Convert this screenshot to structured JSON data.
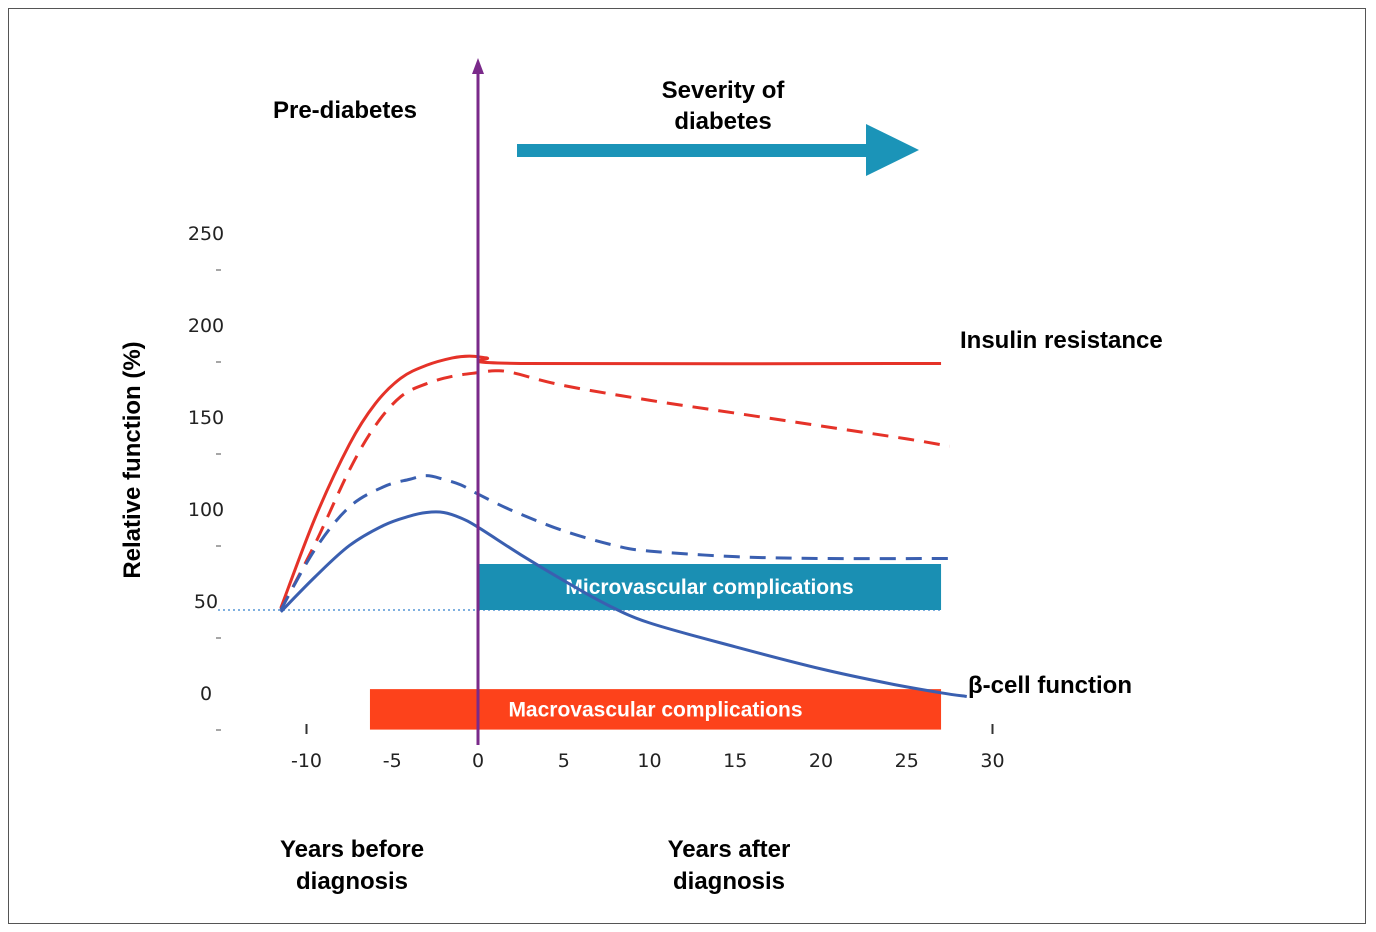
{
  "chart_data": {
    "type": "line",
    "ylabel": "Relative function (%)",
    "x_ticks": [
      -10,
      -5,
      0,
      5,
      10,
      15,
      20,
      25,
      30
    ],
    "y_ticks": [
      0,
      50,
      100,
      150,
      200,
      250
    ],
    "xlim": [
      -10,
      30
    ],
    "ylim": [
      0,
      250
    ],
    "baseline": {
      "y": 50,
      "style": "dotted",
      "color": "#7fb0e0"
    },
    "diagnosis_line": {
      "x": 0,
      "color": "#7a2a8a"
    },
    "header_left": "Pre-diabetes",
    "header_right": "Severity of diabetes",
    "header_right_lines": [
      "Severity of",
      "diabetes"
    ],
    "x_caption_before": [
      "Years before",
      "diagnosis"
    ],
    "x_caption_after": [
      "Years after",
      "diagnosis"
    ],
    "arrow_color": "#1b94b8",
    "series": [
      {
        "name": "Insulin resistance",
        "color": "#e53228",
        "dashed": false,
        "x": [
          -11.5,
          -9.5,
          -7.5,
          -6,
          -4.5,
          -3,
          -1.5,
          -0.5,
          0.5,
          2.5,
          27
        ],
        "y": [
          51,
          100,
          140,
          162,
          176,
          183,
          187,
          188,
          187,
          184,
          184
        ]
      },
      {
        "name": "",
        "color": "#e53228",
        "dashed": true,
        "x": [
          -11.5,
          -9.5,
          -7.5,
          -6,
          -4.5,
          -3,
          -1.5,
          0,
          1,
          2,
          5,
          10,
          15,
          20,
          25,
          27.5
        ],
        "y": [
          50,
          86,
          126,
          150,
          166,
          173,
          177,
          179,
          180,
          179,
          172,
          164,
          157,
          150,
          143,
          139
        ]
      },
      {
        "name": "",
        "color": "#3a5fb0",
        "dashed": true,
        "x": [
          -11.5,
          -9.5,
          -7.5,
          -5.5,
          -4,
          -3,
          -2,
          -1,
          0,
          2,
          5,
          8,
          10,
          15,
          20,
          27.5
        ],
        "y": [
          50,
          83,
          106,
          117,
          121,
          123,
          121,
          118,
          113,
          104,
          93,
          85,
          82,
          79,
          78,
          78
        ]
      },
      {
        "name": "β-cell function",
        "color": "#3a5fb0",
        "dashed": false,
        "x": [
          -11.5,
          -9.5,
          -7.5,
          -5.5,
          -4,
          -3,
          -2,
          -1,
          0,
          2.5,
          5,
          7.5,
          10,
          15,
          20,
          24,
          27,
          28.5
        ],
        "y": [
          49,
          68,
          85,
          96,
          101,
          103,
          103,
          100,
          95,
          80,
          66,
          53,
          43,
          30,
          18,
          10,
          5,
          3
        ]
      }
    ],
    "bands": [
      {
        "label": "Microvascular complications",
        "x_start": 0,
        "x_end": 27,
        "y_start": 50,
        "y_end": 75,
        "color": "#1a8fb3"
      },
      {
        "label": "Macrovascular complications",
        "x_start": -6.3,
        "x_end": 27,
        "y_start": -15,
        "y_end": 7,
        "color": "#fd421b"
      }
    ]
  }
}
